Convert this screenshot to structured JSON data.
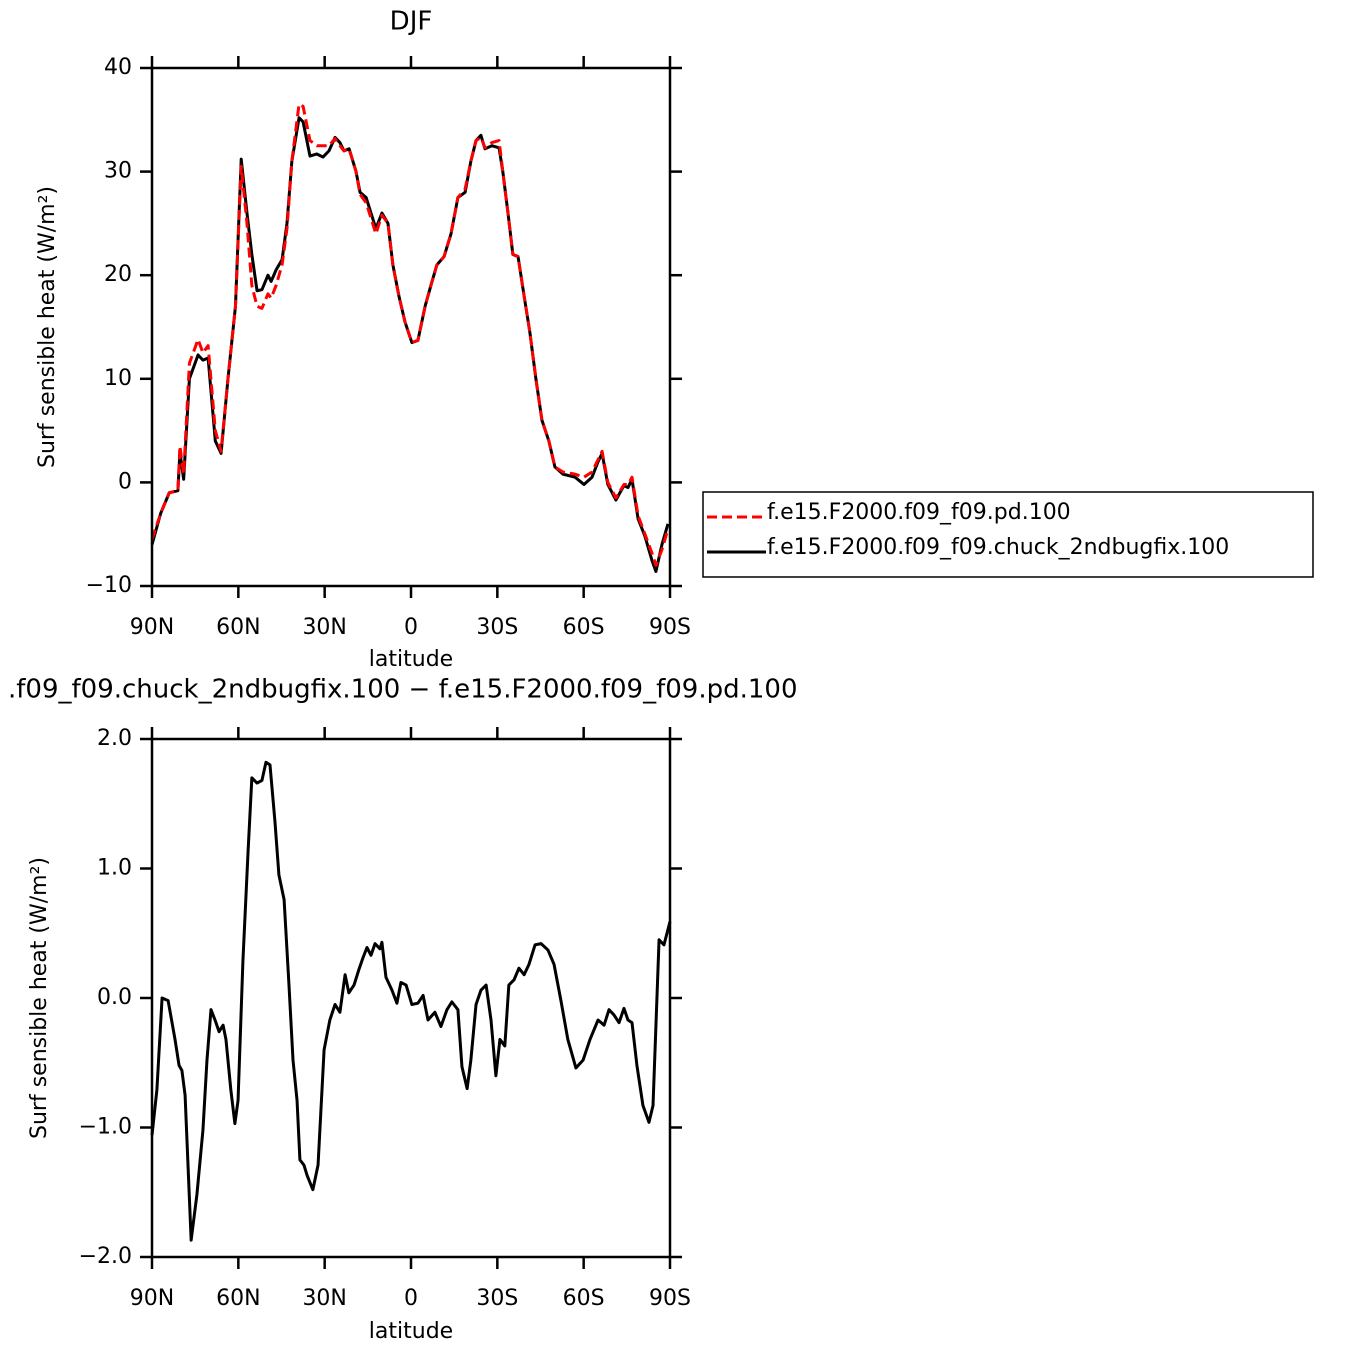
{
  "chart_data": [
    {
      "type": "line",
      "title": "DJF",
      "xlabel": "latitude",
      "ylabel": "Surf sensible heat (W/m²)",
      "xlim": [
        90,
        -90
      ],
      "xticks": [
        {
          "value": 90,
          "label": "90N"
        },
        {
          "value": 60,
          "label": "60N"
        },
        {
          "value": 30,
          "label": "30N"
        },
        0,
        {
          "value": -30,
          "label": "30S"
        },
        {
          "value": -60,
          "label": "60S"
        },
        {
          "value": -90,
          "label": "90S"
        }
      ],
      "ylim": [
        -10,
        40
      ],
      "yticks": [
        40,
        30,
        20,
        10,
        0,
        {
          "value": -10,
          "label": "−10"
        }
      ],
      "legend": "right",
      "x": [
        90,
        87,
        84,
        81,
        80.3,
        79,
        77,
        74,
        72.3,
        70.5,
        68,
        66,
        63.6,
        61,
        59,
        57,
        55.3,
        53.5,
        51.8,
        49.7,
        48.6,
        46.9,
        44.8,
        43.1,
        41.4,
        38.9,
        37.5,
        35.1,
        32.7,
        30.6,
        28.5,
        26.4,
        24.7,
        23.3,
        21.5,
        19.1,
        17.7,
        15.6,
        13.9,
        12.2,
        10.1,
        8,
        6.3,
        4.2,
        2.1,
        -0.3,
        -2.4,
        -4.9,
        -6.9,
        -9,
        -11.5,
        -13.9,
        -16.3,
        -18.8,
        -20.8,
        -22.6,
        -24.3,
        -25.7,
        -28.1,
        -30.6,
        -31.9,
        -33.7,
        -35.4,
        -37.2,
        -39.3,
        -41.3,
        -43.4,
        -45.5,
        -47.9,
        -50,
        -52.8,
        -57,
        -60.1,
        -62.9,
        -65,
        -66.4,
        -68.4,
        -71.2,
        -74,
        -75.4,
        -76.8,
        -78.9,
        -81.3,
        -83.7,
        -85.1,
        -87.2,
        -89.3
      ],
      "series": [
        {
          "name": "f.e15.F2000.f09_f09.pd.100",
          "color": "#ff0000",
          "linestyle": "dashed",
          "values": [
            -5.5,
            -3,
            -1,
            -0.8,
            3.5,
            0.8,
            11.5,
            13.8,
            12.5,
            13.2,
            5,
            3,
            10,
            17,
            30.5,
            25,
            19,
            17,
            16.8,
            18.2,
            17.8,
            19,
            21,
            24.5,
            31,
            36.5,
            36.3,
            33,
            32.5,
            32.5,
            32.5,
            33.2,
            32.5,
            32,
            32.2,
            30,
            27.8,
            27,
            25.5,
            24,
            25.8,
            25,
            21,
            18,
            15.5,
            13.5,
            13.7,
            17,
            19,
            21,
            21.8,
            24,
            27.5,
            28.3,
            31,
            33,
            33.3,
            32.3,
            32.8,
            33,
            30,
            26,
            22,
            21.8,
            18,
            14.5,
            10,
            6,
            4,
            1.5,
            1,
            0.8,
            0.5,
            1,
            2.2,
            3,
            0,
            -1.5,
            -0.2,
            -0.2,
            0.5,
            -3.2,
            -5,
            -6.8,
            -8,
            -6.5,
            -4.5
          ]
        },
        {
          "name": "f.e15.F2000.f09_f09.chuck_2ndbugfix.100",
          "color": "#000000",
          "linestyle": "solid",
          "values": [
            -6,
            -3,
            -1,
            -0.8,
            2.9,
            0.3,
            10,
            12.3,
            11.8,
            12,
            4,
            2.8,
            10,
            17,
            31.2,
            26,
            22,
            18.5,
            18.6,
            20,
            19.4,
            20.5,
            21.5,
            25,
            31,
            35.2,
            34.8,
            31.5,
            31.7,
            31.4,
            32,
            33.3,
            32.8,
            32,
            32.2,
            30,
            28,
            27.5,
            26,
            24.5,
            26,
            25,
            21,
            18,
            15.5,
            13.5,
            13.7,
            17,
            19,
            21,
            21.8,
            24,
            27.5,
            28,
            31,
            33,
            33.5,
            32.2,
            32.5,
            32.3,
            30,
            26,
            22,
            21.8,
            18,
            14.5,
            10,
            6,
            4,
            1.5,
            0.8,
            0.5,
            -0.2,
            0.5,
            2,
            2.8,
            -0.2,
            -1.7,
            -0.3,
            -0.5,
            0.3,
            -3.5,
            -5.2,
            -7.5,
            -8.6,
            -6,
            -4
          ]
        }
      ]
    },
    {
      "type": "line",
      "title": ".f09_f09.chuck_2ndbugfix.100 − f.e15.F2000.f09_f09.pd.100",
      "xlabel": "latitude",
      "ylabel": "Surf sensible heat (W/m²)",
      "xlim": [
        90,
        -90
      ],
      "xticks": [
        {
          "value": 90,
          "label": "90N"
        },
        {
          "value": 60,
          "label": "60N"
        },
        {
          "value": 30,
          "label": "30N"
        },
        0,
        {
          "value": -30,
          "label": "30S"
        },
        {
          "value": -60,
          "label": "60S"
        },
        {
          "value": -90,
          "label": "90S"
        }
      ],
      "ylim": [
        -2,
        2
      ],
      "yticks": [
        {
          "value": 2,
          "label": "2.0"
        },
        {
          "value": 1,
          "label": "1.0"
        },
        {
          "value": 0,
          "label": "0.0"
        },
        {
          "value": -1,
          "label": "−1.0"
        },
        {
          "value": -2,
          "label": "−2.0"
        }
      ],
      "x": [
        90,
        88.3,
        86.5,
        84.4,
        82,
        80.6,
        79.6,
        78.5,
        76.4,
        74.4,
        72.3,
        70.9,
        69.5,
        68.1,
        66.7,
        65.3,
        64.3,
        62.6,
        61.2,
        60.1,
        58.4,
        56.6,
        55.3,
        53.5,
        51.8,
        50.4,
        49,
        47.3,
        45.9,
        44.1,
        42.4,
        41,
        39.6,
        38.6,
        37.2,
        36.1,
        34.1,
        32.3,
        30.2,
        28.2,
        26.4,
        24.7,
        22.9,
        21.6,
        19.8,
        18.1,
        16.7,
        15.3,
        13.9,
        12.5,
        10.8,
        10.1,
        8.7,
        6.6,
        4.9,
        3.5,
        1.7,
        -0.3,
        -2.4,
        -4.2,
        -5.9,
        -8.3,
        -10.4,
        -12.5,
        -14.2,
        -16.3,
        -17.7,
        -19.5,
        -20.8,
        -22.6,
        -24.3,
        -26.1,
        -27.8,
        -29.5,
        -30.9,
        -32.6,
        -34,
        -35.8,
        -37.5,
        -39.3,
        -41,
        -43.1,
        -45.2,
        -47.6,
        -49.7,
        -52.1,
        -54.5,
        -57.3,
        -59.8,
        -62.2,
        -65,
        -67.1,
        -68.8,
        -70.5,
        -72.3,
        -74,
        -75.4,
        -76.8,
        -78.5,
        -80.6,
        -82.7,
        -84.1,
        -86.2,
        -87.9,
        -90
      ],
      "series": [
        {
          "color": "#000000",
          "linestyle": "solid",
          "values": [
            -1.06,
            -0.71,
            0,
            -0.02,
            -0.32,
            -0.52,
            -0.56,
            -0.75,
            -1.87,
            -1.52,
            -1.02,
            -0.48,
            -0.09,
            -0.17,
            -0.26,
            -0.21,
            -0.32,
            -0.71,
            -0.97,
            -0.79,
            0.29,
            1.14,
            1.7,
            1.66,
            1.68,
            1.82,
            1.8,
            1.37,
            0.95,
            0.76,
            0.1,
            -0.48,
            -0.79,
            -1.25,
            -1.29,
            -1.37,
            -1.48,
            -1.29,
            -0.4,
            -0.17,
            -0.05,
            -0.11,
            0.18,
            0.04,
            0.1,
            0.22,
            0.31,
            0.39,
            0.33,
            0.42,
            0.38,
            0.43,
            0.16,
            0.06,
            -0.04,
            0.12,
            0.1,
            -0.05,
            -0.04,
            0.02,
            -0.17,
            -0.11,
            -0.22,
            -0.09,
            -0.03,
            -0.09,
            -0.53,
            -0.7,
            -0.48,
            -0.05,
            0.06,
            0.1,
            -0.17,
            -0.6,
            -0.32,
            -0.37,
            0.1,
            0.14,
            0.23,
            0.18,
            0.26,
            0.41,
            0.42,
            0.37,
            0.26,
            -0.02,
            -0.32,
            -0.54,
            -0.48,
            -0.32,
            -0.17,
            -0.21,
            -0.09,
            -0.13,
            -0.19,
            -0.08,
            -0.17,
            -0.19,
            -0.52,
            -0.83,
            -0.96,
            -0.83,
            0.45,
            0.41,
            0.59
          ]
        }
      ]
    }
  ]
}
